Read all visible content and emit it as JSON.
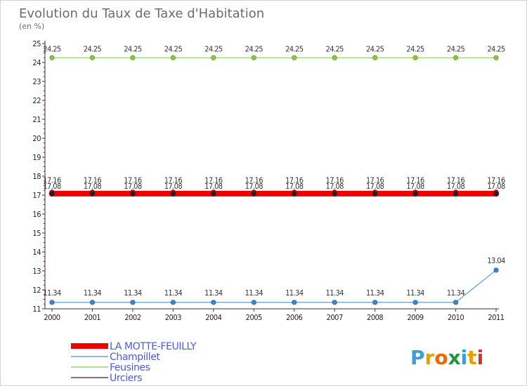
{
  "chart_data": {
    "type": "line",
    "title": "Evolution du Taux de Taxe d'Habitation",
    "subtitle": "(en %)",
    "x": [
      "2000",
      "2001",
      "2002",
      "2003",
      "2004",
      "2005",
      "2006",
      "2007",
      "2008",
      "2009",
      "2010",
      "2011"
    ],
    "ylim": [
      11,
      25
    ],
    "yticks": [
      "11",
      "12",
      "13",
      "14",
      "15",
      "16",
      "17",
      "18",
      "19",
      "20",
      "21",
      "22",
      "23",
      "24",
      "25"
    ],
    "grid": false,
    "legend_position": "bottom-left",
    "series": [
      {
        "name": "LA MOTTE-FEUILLY",
        "color": "#ee0000",
        "values": [
          17.08,
          17.08,
          17.08,
          17.08,
          17.08,
          17.08,
          17.08,
          17.08,
          17.08,
          17.08,
          17.08,
          17.08
        ],
        "labels": [
          "17.08",
          "17.08",
          "17.08",
          "17.08",
          "17.08",
          "17.08",
          "17.08",
          "17.08",
          "17.08",
          "17.08",
          "17.08",
          "17.08"
        ]
      },
      {
        "name": "Champillet",
        "color": "#6ea3d0",
        "values": [
          11.34,
          11.34,
          11.34,
          11.34,
          11.34,
          11.34,
          11.34,
          11.34,
          11.34,
          11.34,
          11.34,
          13.04
        ],
        "labels": [
          "11.34",
          "11.34",
          "11.34",
          "11.34",
          "11.34",
          "11.34",
          "11.34",
          "11.34",
          "11.34",
          "11.34",
          "11.34",
          "13.04"
        ]
      },
      {
        "name": "Feusines",
        "color": "#99d66a",
        "values": [
          24.25,
          24.25,
          24.25,
          24.25,
          24.25,
          24.25,
          24.25,
          24.25,
          24.25,
          24.25,
          24.25,
          24.25
        ],
        "labels": [
          "24.25",
          "24.25",
          "24.25",
          "24.25",
          "24.25",
          "24.25",
          "24.25",
          "24.25",
          "24.25",
          "24.25",
          "24.25",
          "24.25"
        ]
      },
      {
        "name": "Urciers",
        "color": "#7a3a4a",
        "values": [
          17.16,
          17.16,
          17.16,
          17.16,
          17.16,
          17.16,
          17.16,
          17.16,
          17.16,
          17.16,
          17.16,
          17.16
        ],
        "labels": [
          "17.16",
          "17.16",
          "17.16",
          "17.16",
          "17.16",
          "17.16",
          "17.16",
          "17.16",
          "17.16",
          "17.16",
          "17.16",
          "17.16"
        ]
      }
    ]
  },
  "logo": {
    "text": "Proxiti"
  }
}
